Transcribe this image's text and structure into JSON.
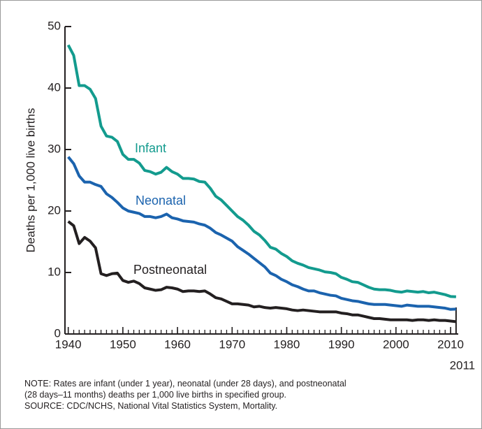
{
  "chart_data": {
    "type": "line",
    "y_label": "Deaths per 1,000 live births",
    "x": [
      1940,
      1941,
      1942,
      1943,
      1944,
      1945,
      1946,
      1947,
      1948,
      1949,
      1950,
      1951,
      1952,
      1953,
      1954,
      1955,
      1956,
      1957,
      1958,
      1959,
      1960,
      1961,
      1962,
      1963,
      1964,
      1965,
      1966,
      1967,
      1968,
      1969,
      1970,
      1971,
      1972,
      1973,
      1974,
      1975,
      1976,
      1977,
      1978,
      1979,
      1980,
      1981,
      1982,
      1983,
      1984,
      1985,
      1986,
      1987,
      1988,
      1989,
      1990,
      1991,
      1992,
      1993,
      1994,
      1995,
      1996,
      1997,
      1998,
      1999,
      2000,
      2001,
      2002,
      2003,
      2004,
      2005,
      2006,
      2007,
      2008,
      2009,
      2010,
      2011
    ],
    "series": [
      {
        "name": "Infant",
        "color": "#139b8e",
        "values": [
          47.0,
          45.3,
          40.4,
          40.4,
          39.8,
          38.3,
          33.8,
          32.2,
          32.0,
          31.3,
          29.2,
          28.4,
          28.4,
          27.8,
          26.6,
          26.4,
          26.0,
          26.3,
          27.1,
          26.4,
          26.0,
          25.3,
          25.3,
          25.2,
          24.8,
          24.7,
          23.7,
          22.4,
          21.8,
          20.9,
          20.0,
          19.1,
          18.5,
          17.7,
          16.7,
          16.1,
          15.2,
          14.1,
          13.8,
          13.1,
          12.6,
          11.9,
          11.5,
          11.2,
          10.8,
          10.6,
          10.4,
          10.1,
          10.0,
          9.8,
          9.2,
          8.9,
          8.5,
          8.4,
          8.0,
          7.6,
          7.3,
          7.2,
          7.2,
          7.1,
          6.9,
          6.8,
          7.0,
          6.9,
          6.8,
          6.9,
          6.7,
          6.8,
          6.6,
          6.4,
          6.1,
          6.05
        ]
      },
      {
        "name": "Neonatal",
        "color": "#1b63ae",
        "values": [
          28.8,
          27.7,
          25.7,
          24.7,
          24.7,
          24.3,
          24.0,
          22.8,
          22.2,
          21.4,
          20.5,
          20.0,
          19.8,
          19.6,
          19.1,
          19.1,
          18.9,
          19.1,
          19.5,
          18.9,
          18.7,
          18.4,
          18.3,
          18.2,
          17.9,
          17.7,
          17.2,
          16.5,
          16.1,
          15.6,
          15.1,
          14.2,
          13.6,
          13.0,
          12.3,
          11.6,
          10.9,
          9.9,
          9.5,
          8.9,
          8.5,
          8.0,
          7.7,
          7.3,
          7.0,
          7.0,
          6.7,
          6.5,
          6.3,
          6.2,
          5.8,
          5.6,
          5.4,
          5.3,
          5.1,
          4.9,
          4.8,
          4.8,
          4.8,
          4.7,
          4.6,
          4.5,
          4.7,
          4.6,
          4.5,
          4.5,
          4.5,
          4.4,
          4.3,
          4.2,
          4.0,
          4.05
        ]
      },
      {
        "name": "Postneonatal",
        "color": "#231f20",
        "values": [
          18.3,
          17.6,
          14.7,
          15.7,
          15.1,
          14.0,
          9.8,
          9.5,
          9.8,
          9.9,
          8.7,
          8.4,
          8.6,
          8.2,
          7.5,
          7.3,
          7.1,
          7.2,
          7.6,
          7.5,
          7.3,
          6.9,
          7.0,
          7.0,
          6.9,
          7.0,
          6.5,
          5.9,
          5.7,
          5.3,
          4.9,
          4.9,
          4.8,
          4.7,
          4.4,
          4.5,
          4.3,
          4.2,
          4.3,
          4.2,
          4.1,
          3.9,
          3.8,
          3.9,
          3.8,
          3.7,
          3.6,
          3.6,
          3.6,
          3.6,
          3.4,
          3.3,
          3.1,
          3.1,
          2.9,
          2.7,
          2.5,
          2.5,
          2.4,
          2.3,
          2.3,
          2.3,
          2.3,
          2.2,
          2.3,
          2.3,
          2.2,
          2.3,
          2.2,
          2.2,
          2.1,
          2.0
        ]
      }
    ],
    "xlim": [
      1939.4,
      2011.4
    ],
    "ylim": [
      0,
      50
    ],
    "xticks": [
      1940,
      1950,
      1960,
      1970,
      1980,
      1990,
      2000,
      2010,
      2011
    ],
    "yticks": [
      0,
      10,
      20,
      30,
      40,
      50
    ],
    "notes": [
      "NOTE: Rates are infant (under 1 year), neonatal (under 28 days), and postneonatal",
      "(28 days–11 months) deaths per 1,000 live births in specified group.",
      "SOURCE: CDC/NCHS, National Vital Statistics System, Mortality."
    ]
  }
}
